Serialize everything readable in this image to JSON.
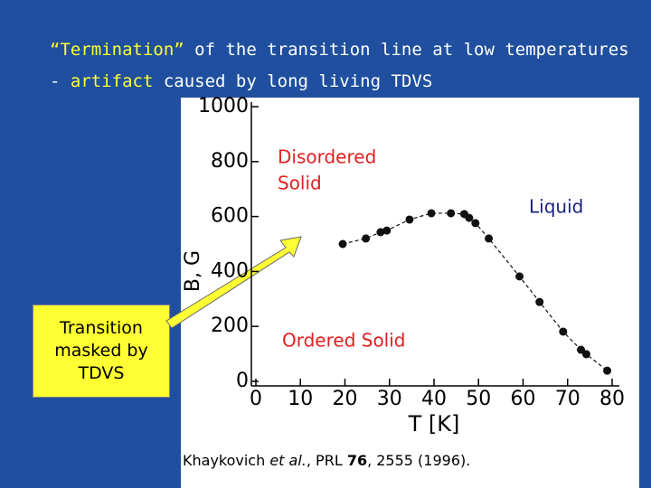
{
  "slide": {
    "title_line1": [
      "“Termination”",
      " of the transition line at low temperatures"
    ],
    "title_line2": [
      "- ",
      "artifact",
      " caused by long living TDVS"
    ],
    "box_text": [
      "Transition",
      "masked by",
      "TDVS"
    ],
    "citation": [
      "Khaykovich ",
      "et al.",
      ", PRL ",
      "76",
      ", 2555 (1996)."
    ]
  },
  "chart_data": {
    "type": "scatter",
    "xlabel": "T [K]",
    "ylabel": "B, G",
    "annotations": [
      "Disordered",
      "Solid",
      "Liquid",
      "Ordered Solid"
    ],
    "series": [
      {
        "name": null,
        "color": "#111111",
        "x": [
          19.5,
          24.7,
          28.0,
          29.4,
          34.5,
          39.4,
          43.8,
          46.8,
          47.9,
          49.3,
          52.3,
          59.2,
          63.7,
          69.0,
          73.0,
          74.2,
          78.9
        ],
        "values": [
          500,
          520,
          543,
          549,
          589,
          612,
          612,
          609,
          595,
          576,
          520,
          382,
          289,
          181,
          115,
          99,
          39
        ]
      }
    ],
    "xlim": [
      0,
      80
    ],
    "xticks": [
      0,
      10,
      20,
      30,
      40,
      50,
      60,
      70,
      80
    ],
    "ylim": [
      0,
      1000
    ],
    "yticks": [
      0,
      200,
      400,
      600,
      800,
      1000
    ]
  }
}
